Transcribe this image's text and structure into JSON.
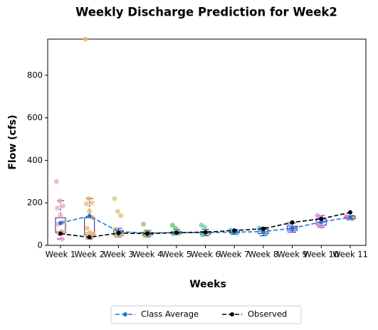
{
  "chart_data": {
    "type": "box",
    "title": "Weekly Discharge Prediction for Week2",
    "xlabel": "Weeks",
    "ylabel": "Flow (cfs)",
    "categories": [
      "Week 1",
      "Week 2",
      "Week 3",
      "Week 4",
      "Week 5",
      "Week 6",
      "Week 7",
      "Week 8",
      "Week 9",
      "Week 10",
      "Week 11"
    ],
    "ylim": [
      0,
      970
    ],
    "yticks": [
      0,
      200,
      400,
      600,
      800
    ],
    "boxes": [
      {
        "whislo": 30,
        "q1": 60,
        "med": 65,
        "q3": 130,
        "whishi": 210,
        "color": "#f2a6b8",
        "points": [
          300,
          210,
          185,
          175,
          140,
          110,
          100,
          65,
          60,
          55,
          30
        ]
      },
      {
        "whislo": 30,
        "q1": 50,
        "med": 60,
        "q3": 130,
        "whishi": 220,
        "color": "#f5b36a",
        "points": [
          970,
          220,
          200,
          195,
          160,
          130,
          80,
          60,
          50,
          40
        ]
      },
      {
        "whislo": 40,
        "q1": 48,
        "med": 58,
        "q3": 70,
        "whishi": 80,
        "color": "#d9c27a",
        "points": [
          220,
          160,
          140,
          75,
          60,
          50,
          45
        ]
      },
      {
        "whislo": 40,
        "q1": 48,
        "med": 55,
        "q3": 62,
        "whishi": 70,
        "color": "#b1b552",
        "points": [
          100,
          65,
          55,
          50
        ]
      },
      {
        "whislo": 50,
        "q1": 55,
        "med": 60,
        "q3": 65,
        "whishi": 75,
        "color": "#5cc46a",
        "points": [
          95,
          80,
          60,
          55
        ]
      },
      {
        "whislo": 45,
        "q1": 52,
        "med": 58,
        "q3": 65,
        "whishi": 75,
        "color": "#6dcf9f",
        "points": [
          95,
          85,
          60,
          50
        ]
      },
      {
        "whislo": 52,
        "q1": 58,
        "med": 62,
        "q3": 68,
        "whishi": 75,
        "color": "#4fc9c4",
        "points": [
          72,
          65,
          58
        ]
      },
      {
        "whislo": 45,
        "q1": 55,
        "med": 65,
        "q3": 75,
        "whishi": 85,
        "color": "#4fb0e8",
        "points": [
          80,
          65,
          55
        ]
      },
      {
        "whislo": 62,
        "q1": 70,
        "med": 80,
        "q3": 90,
        "whishi": 105,
        "color": "#9d9ce8",
        "points": [
          100,
          85,
          75,
          68
        ]
      },
      {
        "whislo": 85,
        "q1": 95,
        "med": 110,
        "q3": 125,
        "whishi": 140,
        "color": "#d38ce8",
        "points": [
          140,
          130,
          115,
          100,
          90
        ]
      },
      {
        "whislo": 120,
        "q1": 125,
        "med": 132,
        "q3": 138,
        "whishi": 140,
        "color": "#f27fc4",
        "points": [
          135,
          130
        ]
      }
    ],
    "series": [
      {
        "name": "Class Average",
        "color": "#1f77d4",
        "values": [
          105,
          138,
          65,
          58,
          60,
          60,
          62,
          65,
          80,
          110,
          132
        ]
      },
      {
        "name": "Observed",
        "color": "#000000",
        "values": [
          55,
          38,
          58,
          55,
          60,
          62,
          70,
          78,
          108,
          125,
          155
        ]
      }
    ],
    "legend": "lower center"
  }
}
